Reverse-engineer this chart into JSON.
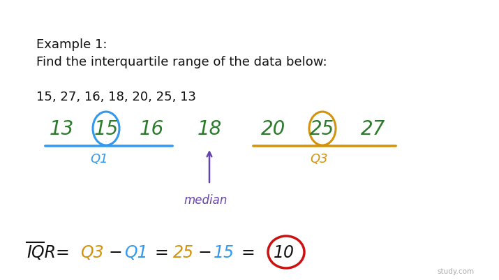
{
  "bg_color": "#ffffff",
  "title_line1": "Example 1:",
  "title_line2": "Find the interquartile range of the data below:",
  "data_line": "15, 27, 16, 18, 20, 25, 13",
  "sorted_numbers": [
    "13",
    "15",
    "16",
    "18",
    "20",
    "25",
    "27"
  ],
  "num_color": "#2d7a2d",
  "q1_circle_color": "#3399ee",
  "q3_circle_color": "#d4920a",
  "q1_line_color": "#3399ee",
  "q3_line_color": "#d4920a",
  "q1_label_color": "#3399ee",
  "q3_label_color": "#d4920a",
  "median_color": "#6644aa",
  "iqr_label_color": "#111111",
  "iqr_q3_color": "#d4920a",
  "iqr_q1_color": "#3399ee",
  "iqr_ans_color": "#cc1111",
  "watermark": "study.com"
}
